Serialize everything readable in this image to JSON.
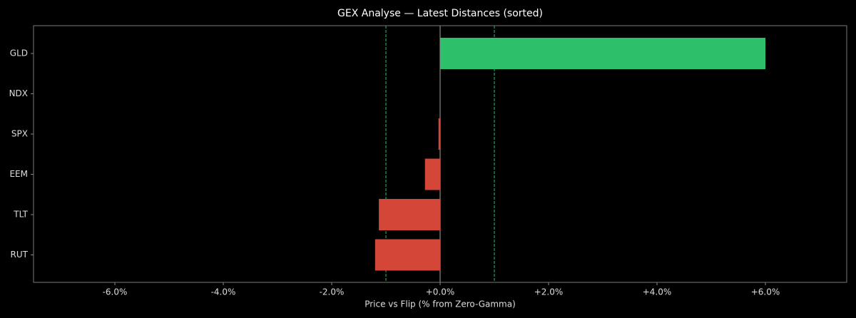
{
  "chart_data": {
    "type": "barh",
    "title": "GEX Analyse — Latest Distances (sorted)",
    "x_label": "Price vs Flip (% from Zero-Gamma)",
    "categories": [
      "GLD",
      "NDX",
      "SPX",
      "EEM",
      "TLT",
      "RUT"
    ],
    "values": [
      6.0,
      0,
      -0.03,
      -0.28,
      -1.13,
      -1.2
    ],
    "colors": [
      "#2ebf6a",
      "#2ebf6a",
      "#d44638",
      "#d44638",
      "#d44638",
      "#d44638"
    ],
    "xlim": [
      -7.5,
      7.5
    ],
    "xticks": [
      {
        "value": -6,
        "label": "-6.0%"
      },
      {
        "value": -4,
        "label": "-4.0%"
      },
      {
        "value": -2,
        "label": "-2.0%"
      },
      {
        "value": 0,
        "label": "+0.0%"
      },
      {
        "value": 2,
        "label": "+2.0%"
      },
      {
        "value": 4,
        "label": "+4.0%"
      },
      {
        "value": 6,
        "label": "+6.0%"
      }
    ],
    "reference_lines": [
      -1,
      1
    ],
    "reference_color": "#2ebf6a"
  }
}
